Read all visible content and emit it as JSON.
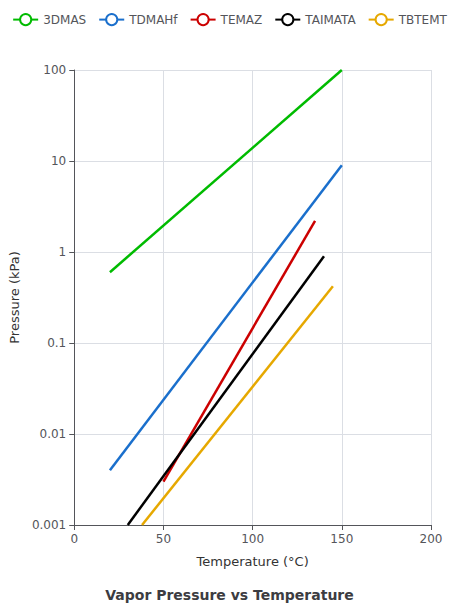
{
  "chart_data": {
    "type": "line",
    "title": "Vapor Pressure vs Temperature",
    "xlabel": "Temperature (°C)",
    "ylabel": "Pressure (kPa)",
    "xlim": [
      0,
      200
    ],
    "xticks": [
      0,
      50,
      100,
      150,
      200
    ],
    "ylim": [
      0.001,
      100
    ],
    "yticks": [
      0.001,
      0.01,
      0.1,
      1,
      10,
      100
    ],
    "log": "y",
    "grid": true,
    "legend": "top",
    "series": [
      {
        "name": "3DMAS",
        "color": "#00bb00",
        "x": [
          20,
          150
        ],
        "values": [
          0.6,
          100
        ]
      },
      {
        "name": "TDMAHf",
        "color": "#1a6fcc",
        "x": [
          20,
          150
        ],
        "values": [
          0.004,
          9.0
        ]
      },
      {
        "name": "TEMAZ",
        "color": "#cc0000",
        "x": [
          50,
          135
        ],
        "values": [
          0.003,
          2.2
        ]
      },
      {
        "name": "TAIMATA",
        "color": "#000000",
        "x": [
          30,
          140
        ],
        "values": [
          0.001,
          0.9
        ]
      },
      {
        "name": "TBTEMT",
        "color": "#e6a800",
        "x": [
          38,
          145
        ],
        "values": [
          0.001,
          0.42
        ]
      }
    ]
  }
}
